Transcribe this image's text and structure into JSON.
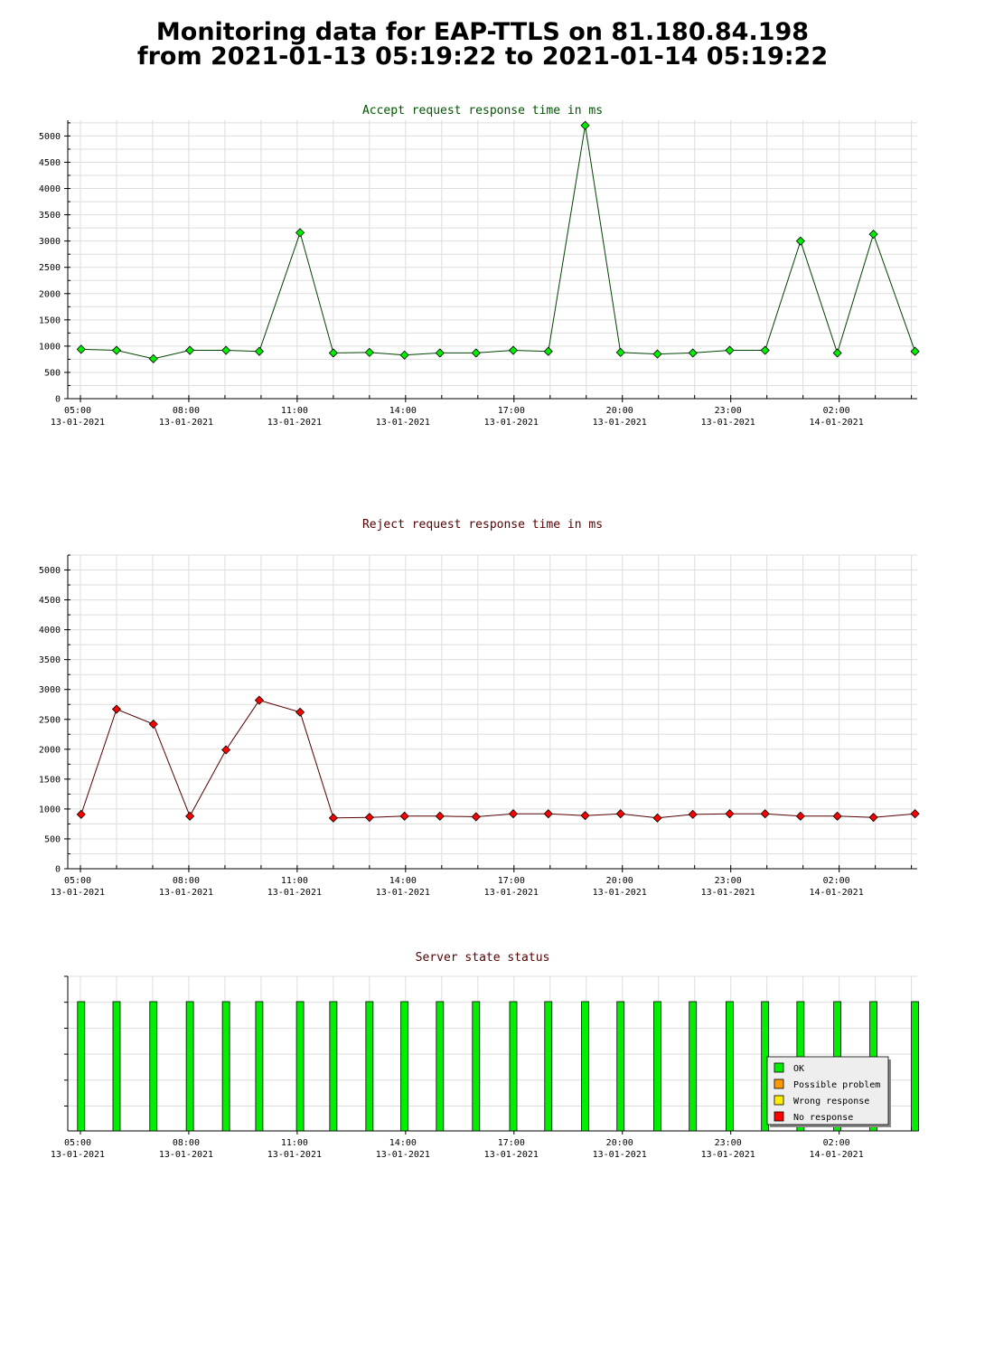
{
  "page": {
    "title_line1": "Monitoring data for EAP-TTLS on 81.180.84.198",
    "title_line2": "from 2021-01-13 05:19:22 to 2021-01-14 05:19:22"
  },
  "colors": {
    "accept_title": "#005500",
    "reject_title": "#550000",
    "status_title": "#550000",
    "accept_marker": "#00ee00",
    "reject_marker": "#ff0000",
    "accept_line": "#004400",
    "reject_line": "#550000",
    "grid": "#dddddd",
    "ok": "#00ee00",
    "possible_problem": "#ff9900",
    "wrong_response": "#ffee00",
    "no_response": "#ff0000"
  },
  "chart_data": [
    {
      "type": "line",
      "title": "Accept request response time in ms",
      "xlabel": "",
      "ylabel": "",
      "x_ticks": [
        {
          "time": "05:00",
          "date": "13-01-2021"
        },
        {
          "time": "08:00",
          "date": "13-01-2021"
        },
        {
          "time": "11:00",
          "date": "13-01-2021"
        },
        {
          "time": "14:00",
          "date": "13-01-2021"
        },
        {
          "time": "17:00",
          "date": "13-01-2021"
        },
        {
          "time": "20:00",
          "date": "13-01-2021"
        },
        {
          "time": "23:00",
          "date": "13-01-2021"
        },
        {
          "time": "02:00",
          "date": "14-01-2021"
        }
      ],
      "x_tick_hours": [
        5,
        8,
        11,
        14,
        17,
        20,
        23,
        26
      ],
      "xlim": [
        4.65,
        28.16
      ],
      "ylim": [
        0,
        5300
      ],
      "y_ticks": [
        0,
        500,
        1000,
        1500,
        2000,
        2500,
        3000,
        3500,
        4000,
        4500,
        5000
      ],
      "grid": true,
      "x": [
        5.02,
        6.0,
        7.02,
        8.03,
        9.03,
        9.95,
        11.08,
        12.0,
        13.0,
        13.97,
        14.95,
        15.95,
        16.98,
        17.95,
        18.97,
        19.95,
        20.97,
        21.95,
        22.97,
        23.95,
        24.93,
        25.95,
        26.95,
        28.1
      ],
      "y": [
        940,
        920,
        760,
        920,
        920,
        900,
        3160,
        870,
        880,
        830,
        870,
        870,
        920,
        900,
        5200,
        880,
        850,
        870,
        920,
        920,
        3000,
        870,
        3130,
        900
      ]
    },
    {
      "type": "line",
      "title": "Reject request response time in ms",
      "xlabel": "",
      "ylabel": "",
      "x_ticks": [
        {
          "time": "05:00",
          "date": "13-01-2021"
        },
        {
          "time": "08:00",
          "date": "13-01-2021"
        },
        {
          "time": "11:00",
          "date": "13-01-2021"
        },
        {
          "time": "14:00",
          "date": "13-01-2021"
        },
        {
          "time": "17:00",
          "date": "13-01-2021"
        },
        {
          "time": "20:00",
          "date": "13-01-2021"
        },
        {
          "time": "23:00",
          "date": "13-01-2021"
        },
        {
          "time": "02:00",
          "date": "14-01-2021"
        }
      ],
      "x_tick_hours": [
        5,
        8,
        11,
        14,
        17,
        20,
        23,
        26
      ],
      "xlim": [
        4.65,
        28.16
      ],
      "ylim": [
        0,
        5250
      ],
      "y_ticks": [
        0,
        500,
        1000,
        1500,
        2000,
        2500,
        3000,
        3500,
        4000,
        4500,
        5000
      ],
      "grid": true,
      "x": [
        5.02,
        6.0,
        7.02,
        8.03,
        9.03,
        9.95,
        11.08,
        12.0,
        13.0,
        13.97,
        14.95,
        15.95,
        16.98,
        17.95,
        18.97,
        19.95,
        20.97,
        21.95,
        22.97,
        23.95,
        24.93,
        25.95,
        26.95,
        28.1
      ],
      "y": [
        910,
        2670,
        2420,
        880,
        1990,
        2820,
        2620,
        850,
        860,
        880,
        880,
        870,
        920,
        920,
        890,
        920,
        850,
        910,
        920,
        920,
        880,
        880,
        860,
        920
      ]
    },
    {
      "type": "bar",
      "title": "Server state status",
      "xlabel": "",
      "ylabel": "",
      "x_ticks": [
        {
          "time": "05:00",
          "date": "13-01-2021"
        },
        {
          "time": "08:00",
          "date": "13-01-2021"
        },
        {
          "time": "11:00",
          "date": "13-01-2021"
        },
        {
          "time": "14:00",
          "date": "13-01-2021"
        },
        {
          "time": "17:00",
          "date": "13-01-2021"
        },
        {
          "time": "20:00",
          "date": "13-01-2021"
        },
        {
          "time": "23:00",
          "date": "13-01-2021"
        },
        {
          "time": "02:00",
          "date": "14-01-2021"
        }
      ],
      "x_tick_hours": [
        5,
        8,
        11,
        14,
        17,
        20,
        23,
        26
      ],
      "xlim": [
        4.65,
        28.16
      ],
      "x": [
        5.02,
        6.0,
        7.02,
        8.03,
        9.03,
        9.95,
        11.08,
        12.0,
        13.0,
        13.97,
        14.95,
        15.95,
        16.98,
        17.95,
        18.97,
        19.95,
        20.97,
        21.95,
        22.97,
        23.95,
        24.93,
        25.95,
        26.95,
        28.1
      ],
      "status": [
        "OK",
        "OK",
        "OK",
        "OK",
        "OK",
        "OK",
        "OK",
        "OK",
        "OK",
        "OK",
        "OK",
        "OK",
        "OK",
        "OK",
        "OK",
        "OK",
        "OK",
        "OK",
        "OK",
        "OK",
        "OK",
        "OK",
        "OK",
        "OK"
      ],
      "legend": [
        "OK",
        "Possible problem",
        "Wrong response",
        "No response"
      ],
      "legend_position": "bottom-right",
      "grid": true
    }
  ]
}
